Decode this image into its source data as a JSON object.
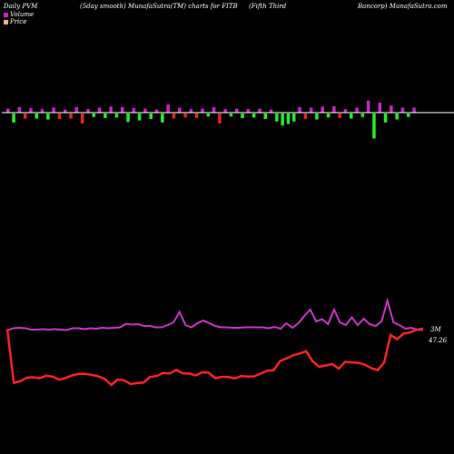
{
  "header": {
    "left": "Daily PVM",
    "smooth": "(5day smooth) MunafaSutra(TM) charts for FITB",
    "company_part1": "(Fifth Third",
    "company_part2": "Bancorp) MunafaSutra.com"
  },
  "legend": [
    {
      "label": "Volume",
      "color": "#cc22cc"
    },
    {
      "label": "Price",
      "color": "#ffaa88"
    }
  ],
  "colors": {
    "background": "#000000",
    "volume_line": "#cc33cc",
    "price_line": "#ff2222",
    "bar_up": "#cc22cc",
    "bar_down_green": "#22ee22",
    "bar_down_red": "#ee2222",
    "baseline": "#ffffff"
  },
  "chart_data": {
    "type": "line",
    "title": "Daily PVM (5day smooth) MunafaSutra(TM) charts for FITB (Fifth Third Bancorp) MunafaSutra.com",
    "axis_labels": {
      "volume_last": "3M",
      "price_last": "47.26"
    },
    "bars": [
      {
        "dir": 1,
        "color": "up",
        "value": 0.4
      },
      {
        "dir": -1,
        "color": "green",
        "value": 0.9
      },
      {
        "dir": 1,
        "color": "up",
        "value": 0.55
      },
      {
        "dir": -1,
        "color": "red",
        "value": 0.5
      },
      {
        "dir": 1,
        "color": "up",
        "value": 0.45
      },
      {
        "dir": -1,
        "color": "green",
        "value": 0.5
      },
      {
        "dir": 1,
        "color": "up",
        "value": 0.35
      },
      {
        "dir": -1,
        "color": "green",
        "value": 0.6
      },
      {
        "dir": 1,
        "color": "up",
        "value": 0.5
      },
      {
        "dir": -1,
        "color": "red",
        "value": 0.55
      },
      {
        "dir": 1,
        "color": "up",
        "value": 0.3
      },
      {
        "dir": -1,
        "color": "red",
        "value": 0.5
      },
      {
        "dir": 1,
        "color": "up",
        "value": 0.55
      },
      {
        "dir": -1,
        "color": "red",
        "value": 1.0
      },
      {
        "dir": 1,
        "color": "up",
        "value": 0.35
      },
      {
        "dir": -1,
        "color": "green",
        "value": 0.35
      },
      {
        "dir": 1,
        "color": "up",
        "value": 0.5
      },
      {
        "dir": -1,
        "color": "green",
        "value": 0.45
      },
      {
        "dir": 1,
        "color": "up",
        "value": 0.6
      },
      {
        "dir": -1,
        "color": "green",
        "value": 0.4
      },
      {
        "dir": 1,
        "color": "up",
        "value": 0.55
      },
      {
        "dir": -1,
        "color": "green",
        "value": 0.85
      },
      {
        "dir": 1,
        "color": "up",
        "value": 0.45
      },
      {
        "dir": -1,
        "color": "green",
        "value": 0.7
      },
      {
        "dir": 1,
        "color": "up",
        "value": 0.4
      },
      {
        "dir": -1,
        "color": "green",
        "value": 0.55
      },
      {
        "dir": 1,
        "color": "up",
        "value": 0.3
      },
      {
        "dir": -1,
        "color": "green",
        "value": 0.9
      },
      {
        "dir": 1,
        "color": "up",
        "value": 0.8
      },
      {
        "dir": -1,
        "color": "red",
        "value": 0.5
      },
      {
        "dir": 1,
        "color": "up",
        "value": 0.5
      },
      {
        "dir": -1,
        "color": "red",
        "value": 0.4
      },
      {
        "dir": 1,
        "color": "up",
        "value": 0.35
      },
      {
        "dir": -1,
        "color": "red",
        "value": 0.45
      },
      {
        "dir": 1,
        "color": "up",
        "value": 0.4
      },
      {
        "dir": -1,
        "color": "green",
        "value": 0.3
      },
      {
        "dir": 1,
        "color": "up",
        "value": 0.55
      },
      {
        "dir": -1,
        "color": "red",
        "value": 1.0
      },
      {
        "dir": 1,
        "color": "up",
        "value": 0.35
      },
      {
        "dir": -1,
        "color": "green",
        "value": 0.3
      },
      {
        "dir": 1,
        "color": "up",
        "value": 0.4
      },
      {
        "dir": -1,
        "color": "green",
        "value": 0.45
      },
      {
        "dir": 1,
        "color": "up",
        "value": 0.35
      },
      {
        "dir": -1,
        "color": "green",
        "value": 0.4
      },
      {
        "dir": 1,
        "color": "up",
        "value": 0.4
      },
      {
        "dir": -1,
        "color": "green",
        "value": 0.55
      },
      {
        "dir": 1,
        "color": "up",
        "value": 0.3
      },
      {
        "dir": -1,
        "color": "green",
        "value": 0.8
      },
      {
        "dir": -1,
        "color": "green",
        "value": 1.2
      },
      {
        "dir": -1,
        "color": "green",
        "value": 1.05
      },
      {
        "dir": -1,
        "color": "green",
        "value": 0.8
      },
      {
        "dir": 1,
        "color": "up",
        "value": 0.55
      },
      {
        "dir": -1,
        "color": "red",
        "value": 0.55
      },
      {
        "dir": 1,
        "color": "up",
        "value": 0.5
      },
      {
        "dir": -1,
        "color": "green",
        "value": 0.6
      },
      {
        "dir": 1,
        "color": "up",
        "value": 0.6
      },
      {
        "dir": -1,
        "color": "green",
        "value": 0.4
      },
      {
        "dir": 1,
        "color": "up",
        "value": 0.65
      },
      {
        "dir": -1,
        "color": "red",
        "value": 0.45
      },
      {
        "dir": 1,
        "color": "up",
        "value": 0.35
      },
      {
        "dir": -1,
        "color": "green",
        "value": 0.5
      },
      {
        "dir": 1,
        "color": "up",
        "value": 0.5
      },
      {
        "dir": -1,
        "color": "green",
        "value": 0.35
      },
      {
        "dir": 1,
        "color": "up",
        "value": 1.2
      },
      {
        "dir": -1,
        "color": "green",
        "value": 2.5
      },
      {
        "dir": 1,
        "color": "up",
        "value": 1.0
      },
      {
        "dir": -1,
        "color": "green",
        "value": 0.9
      },
      {
        "dir": 1,
        "color": "up",
        "value": 0.7
      },
      {
        "dir": -1,
        "color": "green",
        "value": 0.6
      },
      {
        "dir": 1,
        "color": "up",
        "value": 0.5
      },
      {
        "dir": -1,
        "color": "green",
        "value": 0.35
      },
      {
        "dir": 1,
        "color": "up",
        "value": 0.5
      }
    ],
    "series": [
      {
        "name": "Volume",
        "values": [
          0.2,
          0.45,
          0.5,
          0.45,
          0.3,
          0.3,
          0.35,
          0.3,
          0.35,
          0.3,
          0.25,
          0.45,
          0.45,
          0.35,
          0.45,
          0.4,
          0.5,
          0.45,
          0.5,
          0.55,
          0.95,
          0.85,
          0.9,
          0.7,
          0.7,
          0.55,
          0.55,
          0.8,
          1.1,
          2.25,
          0.8,
          0.55,
          1.0,
          1.3,
          1.0,
          0.7,
          0.55,
          0.55,
          0.5,
          0.5,
          0.55,
          0.55,
          0.55,
          0.55,
          0.45,
          0.6,
          0.4,
          1.0,
          0.5,
          1.0,
          1.8,
          2.5,
          1.2,
          1.45,
          0.9,
          2.5,
          1.1,
          0.8,
          1.65,
          0.8,
          1.5,
          0.9,
          0.7,
          1.2,
          3.5,
          1.1,
          0.8,
          0.4,
          0.5,
          0.3,
          0.45
        ]
      },
      {
        "name": "Price",
        "values": [
          47.5,
          30.0,
          30.5,
          31.7,
          31.8,
          31.5,
          32.3,
          32.0,
          31.0,
          31.6,
          32.4,
          32.9,
          32.9,
          32.6,
          32.1,
          31.3,
          29.3,
          31.1,
          30.8,
          29.6,
          29.9,
          30.1,
          31.9,
          32.2,
          33.2,
          33.0,
          34.2,
          33.1,
          33.0,
          32.4,
          33.4,
          33.3,
          31.5,
          31.9,
          31.9,
          31.4,
          32.2,
          32.0,
          32.1,
          33.0,
          33.9,
          34.1,
          37.1,
          37.9,
          38.9,
          39.5,
          40.2,
          37.0,
          35.2,
          35.6,
          36.1,
          34.6,
          36.8,
          36.6,
          36.5,
          35.9,
          34.8,
          34.1,
          36.6,
          45.5,
          44.1,
          46.0,
          46.3,
          47.2,
          47.2
        ]
      }
    ]
  }
}
